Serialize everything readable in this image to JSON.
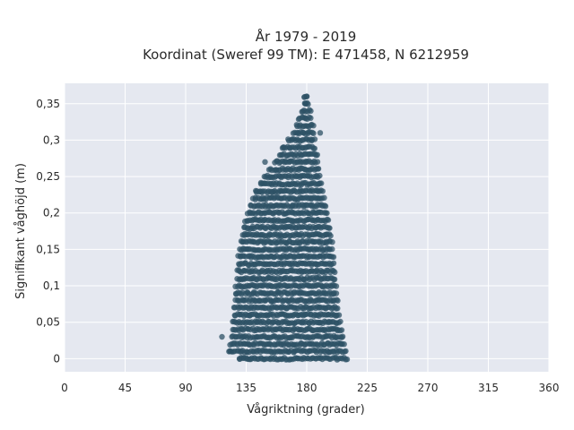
{
  "chart_data": {
    "type": "scatter",
    "title_line1": "År 1979 - 2019",
    "title_line2": "Koordinat (Sweref 99 TM): E 471458, N 6212959",
    "xlabel": "Vågriktning (grader)",
    "ylabel": "Signifikant våghöjd (m)",
    "xlim": [
      0,
      360
    ],
    "ylim": [
      -0.018,
      0.378
    ],
    "xticks": [
      0,
      45,
      90,
      135,
      180,
      225,
      270,
      315,
      360
    ],
    "xtick_labels": [
      "0",
      "45",
      "90",
      "135",
      "180",
      "225",
      "270",
      "315",
      "360"
    ],
    "yticks": [
      0,
      0.05,
      0.1,
      0.15,
      0.2,
      0.25,
      0.3,
      0.35
    ],
    "ytick_labels": [
      "0",
      "0,05",
      "0,1",
      "0,15",
      "0,2",
      "0,25",
      "0,3",
      "0,35"
    ],
    "grid": true,
    "marker_color": "#2e5266",
    "plot_bg": "#e5e8f0",
    "envelope": {
      "description_values": "min and max wave direction (degrees) for each height level, step 0.01 m",
      "heights": [
        0,
        0.01,
        0.02,
        0.03,
        0.04,
        0.05,
        0.06,
        0.07,
        0.08,
        0.09,
        0.1,
        0.11,
        0.12,
        0.13,
        0.14,
        0.15,
        0.16,
        0.17,
        0.18,
        0.19,
        0.2,
        0.21,
        0.22,
        0.23,
        0.24,
        0.25,
        0.26,
        0.27,
        0.28,
        0.29,
        0.3,
        0.31,
        0.32,
        0.33,
        0.34,
        0.35,
        0.36
      ],
      "dir_min": [
        130,
        122,
        123,
        124,
        125,
        125,
        126,
        126,
        127,
        127,
        127,
        128,
        128,
        129,
        129,
        130,
        131,
        132,
        133,
        134,
        136,
        138,
        140,
        142,
        146,
        148,
        152,
        156,
        160,
        162,
        166,
        170,
        172,
        174,
        176,
        178,
        178
      ],
      "dir_max": [
        210,
        209,
        208,
        207,
        206,
        205,
        204,
        203,
        203,
        202,
        202,
        201,
        201,
        200,
        200,
        199,
        199,
        198,
        197,
        196,
        195,
        194,
        193,
        192,
        191,
        190,
        189,
        188,
        188,
        186,
        186,
        185,
        184,
        183,
        182,
        181,
        180
      ]
    },
    "outliers": [
      {
        "x": 117,
        "y": 0.03
      },
      {
        "x": 123,
        "y": 0.01
      },
      {
        "x": 130,
        "y": 0.0
      },
      {
        "x": 135,
        "y": 0.0
      },
      {
        "x": 149,
        "y": 0.27
      },
      {
        "x": 143,
        "y": 0.23
      },
      {
        "x": 146,
        "y": 0.24
      },
      {
        "x": 163,
        "y": 0.29
      },
      {
        "x": 183,
        "y": 0.34
      },
      {
        "x": 180,
        "y": 0.36
      },
      {
        "x": 179,
        "y": 0.35
      },
      {
        "x": 185,
        "y": 0.32
      },
      {
        "x": 190,
        "y": 0.31
      },
      {
        "x": 188,
        "y": 0.22
      }
    ]
  }
}
